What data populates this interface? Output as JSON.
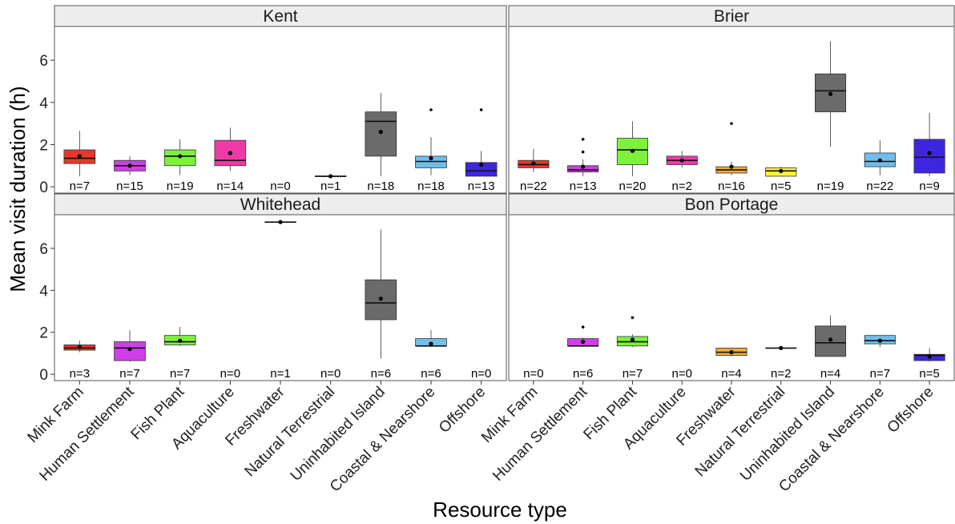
{
  "chart_data": {
    "type": "boxplot",
    "ylabel": "Mean visit duration (h)",
    "xlabel": "Resource type",
    "ylim": [
      -0.3,
      7.6
    ],
    "yticks": [
      0,
      2,
      4,
      6
    ],
    "categories": [
      "Mink Farm",
      "Human Settlement",
      "Fish Plant",
      "Aquaculture",
      "Freshwater",
      "Natural Terrestrial",
      "Uninhabited Island",
      "Coastal & Nearshore",
      "Offshore"
    ],
    "colors": [
      "#e8372a",
      "#cf3ee6",
      "#7cf23a",
      "#ee3aa6",
      "#f2a93a",
      "#fbf23a",
      "#6b6b6b",
      "#72bde9",
      "#3e26e0"
    ],
    "panels": [
      {
        "title": "Kent",
        "groups": [
          {
            "n": "n=7",
            "min": 0.5,
            "q1": 1.1,
            "median": 1.35,
            "q3": 1.75,
            "max": 2.65,
            "mean": 1.45,
            "outliers": []
          },
          {
            "n": "n=15",
            "min": 0.55,
            "q1": 0.75,
            "median": 1.0,
            "q3": 1.25,
            "max": 1.45,
            "mean": 1.0,
            "outliers": []
          },
          {
            "n": "n=19",
            "min": 0.55,
            "q1": 1.0,
            "median": 1.45,
            "q3": 1.75,
            "max": 2.25,
            "mean": 1.45,
            "outliers": []
          },
          {
            "n": "n=14",
            "min": 0.75,
            "q1": 1.0,
            "median": 1.25,
            "q3": 2.2,
            "max": 2.8,
            "mean": 1.6,
            "outliers": []
          },
          {
            "n": "n=0"
          },
          {
            "n": "n=1",
            "min": 0.5,
            "q1": 0.5,
            "median": 0.5,
            "q3": 0.5,
            "max": 0.5,
            "mean": 0.5,
            "outliers": []
          },
          {
            "n": "n=18",
            "min": 0.5,
            "q1": 1.45,
            "median": 3.1,
            "q3": 3.55,
            "max": 4.45,
            "mean": 2.6,
            "outliers": []
          },
          {
            "n": "n=18",
            "min": 0.55,
            "q1": 0.9,
            "median": 1.2,
            "q3": 1.45,
            "max": 2.35,
            "mean": 1.35,
            "outliers": [
              3.65
            ]
          },
          {
            "n": "n=13",
            "min": 0.5,
            "q1": 0.5,
            "median": 0.75,
            "q3": 1.15,
            "max": 1.7,
            "mean": 1.05,
            "outliers": [
              3.65
            ]
          }
        ]
      },
      {
        "title": "Brier",
        "groups": [
          {
            "n": "n=22",
            "min": 0.7,
            "q1": 0.9,
            "median": 1.05,
            "q3": 1.25,
            "max": 1.8,
            "mean": 1.1,
            "outliers": []
          },
          {
            "n": "n=13",
            "min": 0.5,
            "q1": 0.7,
            "median": 0.8,
            "q3": 1.0,
            "max": 1.3,
            "mean": 0.95,
            "outliers": [
              1.65,
              2.25
            ]
          },
          {
            "n": "n=20",
            "min": 0.5,
            "q1": 1.05,
            "median": 1.75,
            "q3": 2.3,
            "max": 3.1,
            "mean": 1.7,
            "outliers": []
          },
          {
            "n": "n=2",
            "min": 0.9,
            "q1": 1.05,
            "median": 1.25,
            "q3": 1.45,
            "max": 1.7,
            "mean": 1.25,
            "outliers": []
          },
          {
            "n": "n=16",
            "min": 0.55,
            "q1": 0.65,
            "median": 0.8,
            "q3": 0.95,
            "max": 1.2,
            "mean": 0.95,
            "outliers": [
              3.0
            ]
          },
          {
            "n": "n=5",
            "min": 0.5,
            "q1": 0.5,
            "median": 0.75,
            "q3": 0.9,
            "max": 0.95,
            "mean": 0.75,
            "outliers": []
          },
          {
            "n": "n=19",
            "min": 1.9,
            "q1": 3.55,
            "median": 4.55,
            "q3": 5.35,
            "max": 6.9,
            "mean": 4.4,
            "outliers": []
          },
          {
            "n": "n=22",
            "min": 0.55,
            "q1": 0.95,
            "median": 1.2,
            "q3": 1.6,
            "max": 2.2,
            "mean": 1.25,
            "outliers": []
          },
          {
            "n": "n=9",
            "min": 0.5,
            "q1": 0.65,
            "median": 1.4,
            "q3": 2.25,
            "max": 3.5,
            "mean": 1.6,
            "outliers": []
          }
        ]
      },
      {
        "title": "Whitehead",
        "groups": [
          {
            "n": "n=3",
            "min": 1.05,
            "q1": 1.15,
            "median": 1.25,
            "q3": 1.4,
            "max": 1.6,
            "mean": 1.3,
            "outliers": []
          },
          {
            "n": "n=7",
            "min": 0.6,
            "q1": 0.65,
            "median": 1.25,
            "q3": 1.55,
            "max": 2.1,
            "mean": 1.2,
            "outliers": []
          },
          {
            "n": "n=7",
            "min": 1.35,
            "q1": 1.4,
            "median": 1.55,
            "q3": 1.85,
            "max": 2.25,
            "mean": 1.6,
            "outliers": []
          },
          {
            "n": "n=0"
          },
          {
            "n": "n=1",
            "min": 7.25,
            "q1": 7.25,
            "median": 7.25,
            "q3": 7.25,
            "max": 7.25,
            "mean": 7.25,
            "outliers": []
          },
          {
            "n": "n=0"
          },
          {
            "n": "n=6",
            "min": 0.75,
            "q1": 2.6,
            "median": 3.4,
            "q3": 4.5,
            "max": 6.9,
            "mean": 3.6,
            "outliers": []
          },
          {
            "n": "n=6",
            "min": 1.3,
            "q1": 1.35,
            "median": 1.35,
            "q3": 1.7,
            "max": 2.1,
            "mean": 1.45,
            "outliers": []
          },
          {
            "n": "n=0"
          }
        ]
      },
      {
        "title": "Bon Portage",
        "groups": [
          {
            "n": "n=0"
          },
          {
            "n": "n=6",
            "min": 1.3,
            "q1": 1.35,
            "median": 1.35,
            "q3": 1.7,
            "max": 1.75,
            "mean": 1.55,
            "outliers": [
              2.25
            ]
          },
          {
            "n": "n=7",
            "min": 1.3,
            "q1": 1.35,
            "median": 1.55,
            "q3": 1.8,
            "max": 1.9,
            "mean": 1.65,
            "outliers": [
              2.7
            ]
          },
          {
            "n": "n=0"
          },
          {
            "n": "n=4",
            "min": 0.85,
            "q1": 0.9,
            "median": 1.05,
            "q3": 1.25,
            "max": 1.25,
            "mean": 1.05,
            "outliers": []
          },
          {
            "n": "n=2",
            "min": 1.25,
            "q1": 1.25,
            "median": 1.25,
            "q3": 1.25,
            "max": 1.25,
            "mean": 1.25,
            "outliers": []
          },
          {
            "n": "n=4",
            "min": 0.85,
            "q1": 0.85,
            "median": 1.5,
            "q3": 2.3,
            "max": 2.8,
            "mean": 1.65,
            "outliers": []
          },
          {
            "n": "n=7",
            "min": 1.3,
            "q1": 1.45,
            "median": 1.6,
            "q3": 1.85,
            "max": 1.85,
            "mean": 1.6,
            "outliers": []
          },
          {
            "n": "n=5",
            "min": 0.6,
            "q1": 0.65,
            "median": 0.9,
            "q3": 0.95,
            "max": 1.25,
            "mean": 0.85,
            "outliers": []
          }
        ]
      }
    ]
  }
}
